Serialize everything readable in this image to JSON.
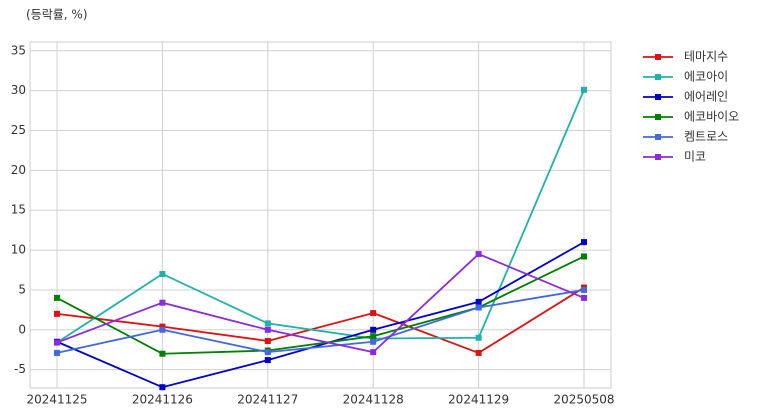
{
  "chart_data": {
    "type": "line",
    "y_label": "(등락률, %)",
    "categories": [
      "20241125",
      "20241126",
      "20241127",
      "20241128",
      "20241129",
      "20250508"
    ],
    "series": [
      {
        "name": "테마지수",
        "color": "#dd1111",
        "values": [
          2.0,
          0.4,
          -1.4,
          2.1,
          -2.9,
          5.3
        ]
      },
      {
        "name": "에코아이",
        "color": "#20b2aa",
        "values": [
          -1.6,
          7.0,
          0.8,
          -1.1,
          -1.0,
          30.1
        ]
      },
      {
        "name": "에어레인",
        "color": "#0000cd",
        "values": [
          -1.5,
          -7.2,
          -3.8,
          0.0,
          3.5,
          11.0
        ]
      },
      {
        "name": "에코바이오",
        "color": "#008000",
        "values": [
          4.0,
          -3.0,
          -2.6,
          -0.8,
          2.8,
          9.2
        ]
      },
      {
        "name": "켐트로스",
        "color": "#4169e1",
        "values": [
          -2.9,
          0.0,
          -2.8,
          -1.5,
          2.8,
          5.0
        ]
      },
      {
        "name": "미코",
        "color": "#8a2be2",
        "values": [
          -1.6,
          3.4,
          0.0,
          -2.8,
          9.5,
          4.0
        ]
      }
    ],
    "ylim": [
      -7.3,
      36.1
    ],
    "yticks": [
      -5,
      0,
      5,
      10,
      15,
      20,
      25,
      30,
      35
    ],
    "grid": true,
    "legend": "outside-right"
  }
}
